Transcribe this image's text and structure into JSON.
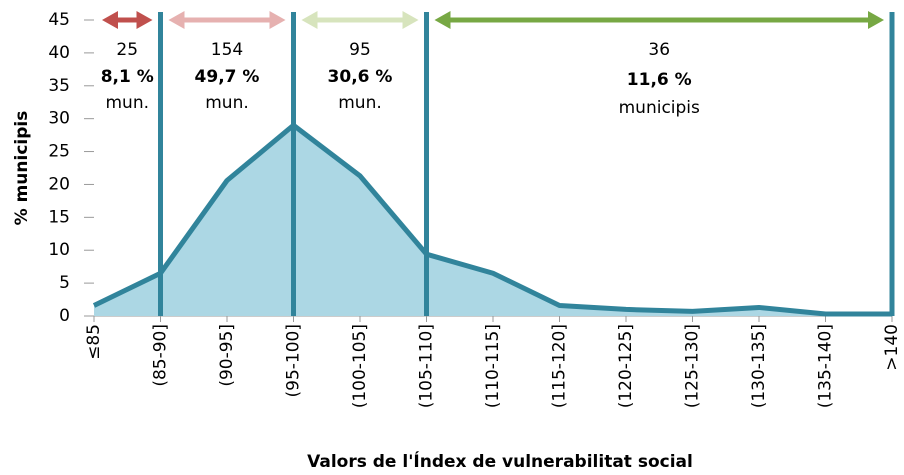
{
  "chart_data": {
    "type": "area",
    "xlabel": "Valors de l'Índex de vulnerabilitat social",
    "ylabel": "% municipis",
    "categories": [
      "≤85",
      "(85-90]",
      "(90-95]",
      "(95-100]",
      "(100-105]",
      "(105-110]",
      "(110-115]",
      "(115-120]",
      "(120-125]",
      "(125-130]",
      "(130-135]",
      "(135-140]",
      ">140"
    ],
    "values": [
      1.6,
      6.5,
      20.6,
      29.0,
      21.3,
      9.4,
      6.5,
      1.6,
      1.0,
      0.7,
      1.3,
      0.3,
      0.3
    ],
    "color": "#31849b",
    "fill": "#acd7e4",
    "ylim": [
      0,
      45
    ],
    "yticks": [
      0,
      5,
      10,
      15,
      20,
      25,
      30,
      35,
      40,
      45
    ],
    "annotations": [
      {
        "from": "≤85",
        "to": "(85-90]",
        "count": 25,
        "share": 8.1,
        "share_label": "8,1 %",
        "unit": "mun.",
        "color": "#c0504d"
      },
      {
        "from": "(85-90]",
        "to": "(95-100]",
        "count": 154,
        "share": 49.7,
        "share_label": "49,7 %",
        "unit": "mun.",
        "color": "#e6b1b0"
      },
      {
        "from": "(95-100]",
        "to": "(105-110]",
        "count": 95,
        "share": 30.6,
        "share_label": "30,6 %",
        "unit": "mun.",
        "color": "#d7e4bd"
      },
      {
        "from": "(105-110]",
        "to": ">140",
        "count": 36,
        "share": 11.6,
        "share_label": "11,6 %",
        "unit": "municipis",
        "color": "#77a844"
      }
    ]
  }
}
